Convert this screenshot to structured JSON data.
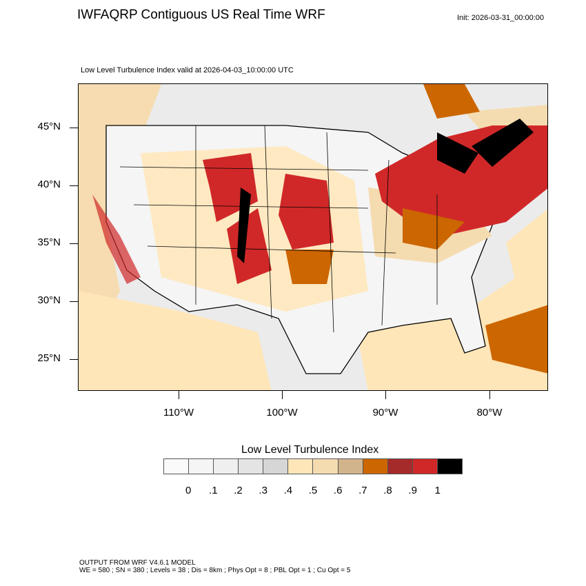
{
  "header": {
    "title": "IWFAQRP Contiguous US Real Time WRF",
    "init": "Init: 2026-03-31_00:00:00",
    "subtitle": "Low Level Turbulence Index valid at 2026-04-03_10:00:00 UTC"
  },
  "map": {
    "lat_labels": [
      "45°N",
      "40°N",
      "35°N",
      "30°N",
      "25°N"
    ],
    "lon_labels": [
      "110°W",
      "100°W",
      "90°W",
      "80°W"
    ]
  },
  "colorbar": {
    "title": "Low Level Turbulence Index",
    "colors": [
      "#fafafa",
      "#f5f5f5",
      "#efefef",
      "#e4e4e4",
      "#d6d6d6",
      "#ffe6b8",
      "#f5dcb0",
      "#d2b48c",
      "#cc6600",
      "#a52a2a",
      "#d02828",
      "#000000"
    ],
    "labels": [
      "0",
      ".1",
      ".2",
      ".3",
      ".4",
      ".5",
      ".6",
      ".7",
      ".8",
      ".9",
      "1"
    ]
  },
  "footer": {
    "line1": "OUTPUT FROM WRF V4.6.1 MODEL",
    "line2": "WE = 580 ; SN = 380 ; Levels = 38 ; Dis = 8km ; Phys Opt = 8 ; PBL Opt = 1 ; Cu Opt = 5"
  }
}
